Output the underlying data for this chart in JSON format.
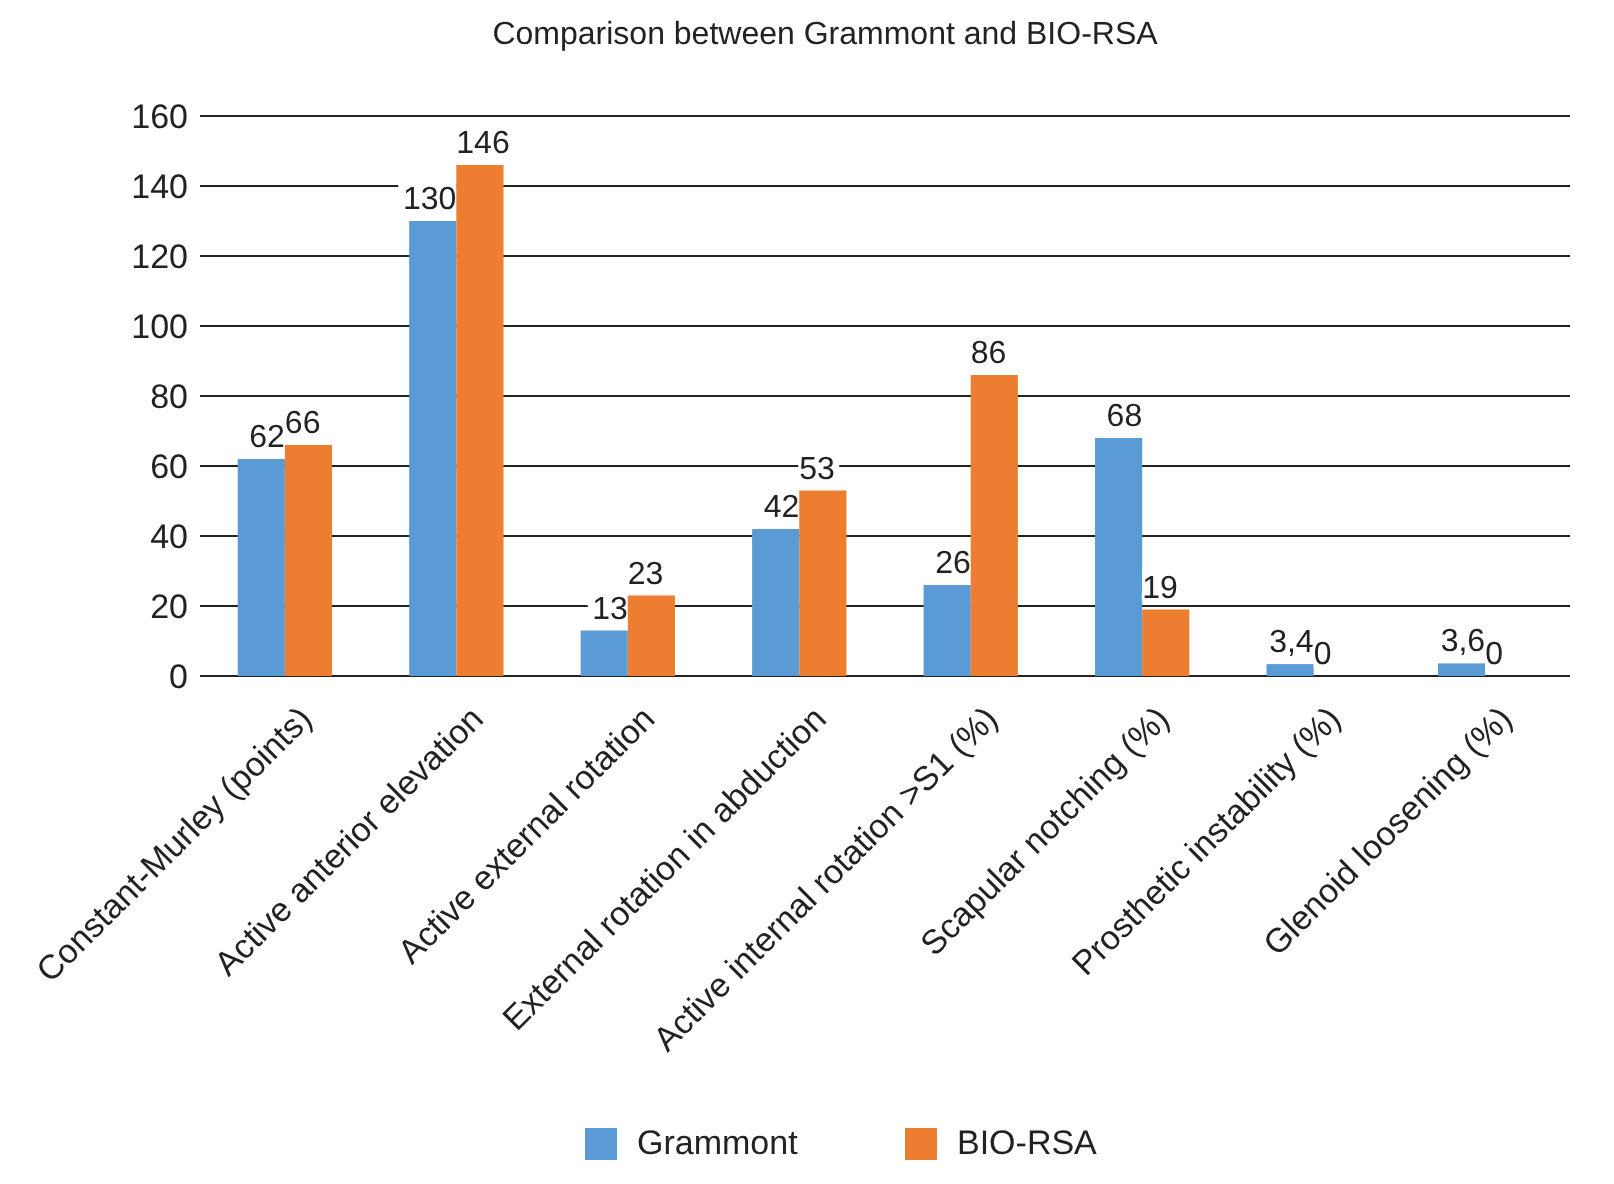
{
  "chart_data": {
    "type": "bar",
    "title": "Comparison between Grammont and BIO-RSA",
    "categories": [
      "Constant-Murley (points)",
      "Active anterior elevation",
      "Active external rotation",
      "External rotation in abduction",
      "Active internal rotation >S1 (%)",
      "Scapular notching (%)",
      "Prosthetic instability (%)",
      "Glenoid loosening (%)"
    ],
    "series": [
      {
        "name": "Grammont",
        "color": "#5b9bd5",
        "values": [
          62,
          130,
          13,
          42,
          26,
          68,
          3.4,
          3.6
        ],
        "value_labels": [
          "62",
          "130",
          "13",
          "42",
          "26",
          "68",
          "3,4",
          "3,6"
        ]
      },
      {
        "name": "BIO-RSA",
        "color": "#ed7d31",
        "values": [
          66,
          146,
          23,
          53,
          86,
          19,
          0,
          0
        ],
        "value_labels": [
          "66",
          "146",
          "23",
          "53",
          "86",
          "19",
          "0",
          "0"
        ]
      }
    ],
    "ylim": [
      0,
      160
    ],
    "yticks": [
      0,
      20,
      40,
      60,
      80,
      100,
      120,
      140,
      160
    ],
    "grid": "y",
    "legend": "bottom"
  }
}
